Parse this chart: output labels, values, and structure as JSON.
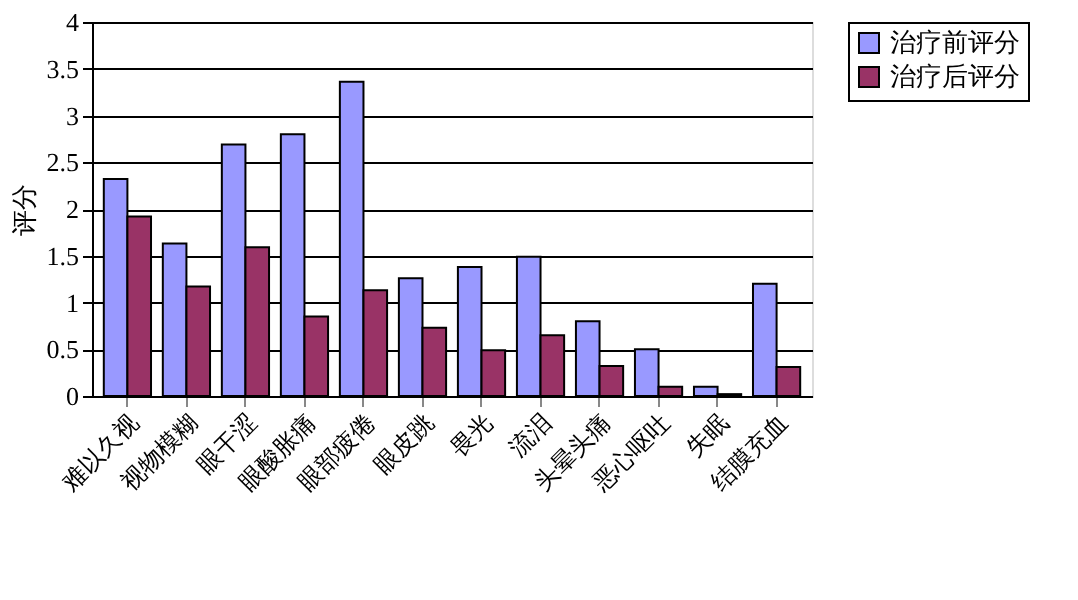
{
  "chart_data": {
    "type": "bar",
    "ylabel": "评分",
    "categories": [
      "难以久视",
      "视物模糊",
      "眼干涩",
      "眼酸胀痛",
      "眼部疲倦",
      "眼皮跳",
      "畏光",
      "流泪",
      "头晕头痛",
      "恶心呕吐",
      "失眠",
      "结膜充血"
    ],
    "series": [
      {
        "name": "治疗前评分",
        "color": "#9999ff",
        "values": [
          2.32,
          1.63,
          2.69,
          2.8,
          3.36,
          1.26,
          1.38,
          1.49,
          0.8,
          0.5,
          0.1,
          1.2
        ]
      },
      {
        "name": "治疗后评分",
        "color": "#993366",
        "values": [
          1.92,
          1.17,
          1.59,
          0.85,
          1.13,
          0.73,
          0.49,
          0.65,
          0.32,
          0.1,
          0.02,
          0.31
        ]
      }
    ],
    "ylim": [
      0,
      4
    ],
    "yticks": [
      0,
      0.5,
      1,
      1.5,
      2,
      2.5,
      3,
      3.5,
      4
    ],
    "grid": "y",
    "legend": "right"
  }
}
